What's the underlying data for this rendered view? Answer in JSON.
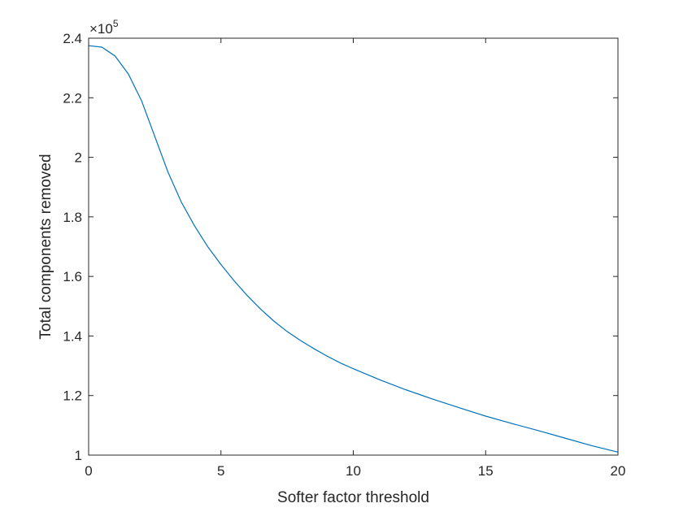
{
  "chart_data": {
    "type": "line",
    "title": "",
    "xlabel": "Softer factor threshold",
    "ylabel": "Total components removed",
    "xlim": [
      0,
      20
    ],
    "ylim": [
      100000,
      240000
    ],
    "x_ticks": [
      0,
      5,
      10,
      15,
      20
    ],
    "x_tick_labels": [
      "0",
      "5",
      "10",
      "15",
      "20"
    ],
    "y_ticks": [
      100000,
      120000,
      140000,
      160000,
      180000,
      200000,
      220000,
      240000
    ],
    "y_tick_labels": [
      "1",
      "1.2",
      "1.4",
      "1.6",
      "1.8",
      "2",
      "2.2",
      "2.4"
    ],
    "y_exponent": {
      "base": "×10",
      "power": "5"
    },
    "grid": false,
    "legend": "none",
    "series": [
      {
        "color": "#0072BD",
        "x": [
          0,
          0.5,
          1,
          1.5,
          2,
          2.5,
          3,
          3.5,
          4,
          4.5,
          5,
          5.5,
          6,
          6.5,
          7,
          7.5,
          8,
          8.5,
          9,
          9.5,
          10,
          11,
          12,
          13,
          14,
          15,
          16,
          17,
          18,
          19,
          20
        ],
        "y": [
          237500,
          237000,
          234000,
          228000,
          219000,
          207000,
          195000,
          185000,
          177000,
          170000,
          164000,
          158500,
          153500,
          149000,
          145000,
          141500,
          138500,
          135800,
          133300,
          131000,
          129000,
          125300,
          121900,
          118800,
          115900,
          113100,
          110600,
          108200,
          105700,
          103200,
          101000
        ]
      }
    ]
  }
}
